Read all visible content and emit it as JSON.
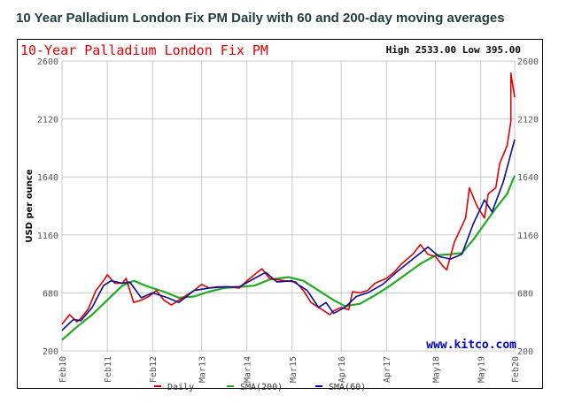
{
  "page_title": "10 Year Palladium London Fix PM Daily with 60 and 200-day moving averages",
  "chart_data": {
    "type": "line",
    "title": "10-Year Palladium London Fix PM",
    "stats": "High 2533.00 Low 395.00",
    "ylabel": "USD per ounce",
    "watermark": "www.kitco.com",
    "ylim": [
      200,
      2600
    ],
    "y_ticks": [
      "200",
      "680",
      "1160",
      "1640",
      "2120",
      "2600"
    ],
    "x_ticks": [
      {
        "label": "Feb10",
        "date": "2010-02"
      },
      {
        "label": "Feb11",
        "date": "2011-02"
      },
      {
        "label": "Feb12",
        "date": "2012-02"
      },
      {
        "label": "Mar13",
        "date": "2013-03"
      },
      {
        "label": "Mar14",
        "date": "2014-03"
      },
      {
        "label": "Mar15",
        "date": "2015-03"
      },
      {
        "label": "Apr16",
        "date": "2016-04"
      },
      {
        "label": "Apr17",
        "date": "2017-04"
      },
      {
        "label": "May18",
        "date": "2018-05"
      },
      {
        "label": "May19",
        "date": "2019-05"
      },
      {
        "label": "Feb20",
        "date": "2020-02"
      }
    ],
    "xlim": [
      "2010-02",
      "2020-02"
    ],
    "grid": true,
    "legend": "bottom",
    "series": [
      {
        "name": "Daily",
        "color": "#e00000",
        "points": [
          [
            "2010-02",
            420
          ],
          [
            "2010-04",
            500
          ],
          [
            "2010-05",
            470
          ],
          [
            "2010-06",
            440
          ],
          [
            "2010-07",
            470
          ],
          [
            "2010-09",
            550
          ],
          [
            "2010-11",
            700
          ],
          [
            "2011-01",
            780
          ],
          [
            "2011-02",
            830
          ],
          [
            "2011-04",
            760
          ],
          [
            "2011-06",
            760
          ],
          [
            "2011-07",
            800
          ],
          [
            "2011-08",
            700
          ],
          [
            "2011-09",
            600
          ],
          [
            "2011-11",
            620
          ],
          [
            "2012-01",
            650
          ],
          [
            "2012-03",
            700
          ],
          [
            "2012-05",
            620
          ],
          [
            "2012-07",
            580
          ],
          [
            "2012-10",
            640
          ],
          [
            "2013-01",
            700
          ],
          [
            "2013-03",
            750
          ],
          [
            "2013-05",
            720
          ],
          [
            "2013-07",
            730
          ],
          [
            "2013-10",
            730
          ],
          [
            "2014-01",
            720
          ],
          [
            "2014-03",
            780
          ],
          [
            "2014-05",
            830
          ],
          [
            "2014-07",
            880
          ],
          [
            "2014-09",
            800
          ],
          [
            "2014-11",
            790
          ],
          [
            "2015-01",
            780
          ],
          [
            "2015-04",
            770
          ],
          [
            "2015-06",
            700
          ],
          [
            "2015-08",
            600
          ],
          [
            "2015-10",
            560
          ],
          [
            "2016-01",
            500
          ],
          [
            "2016-02",
            530
          ],
          [
            "2016-04",
            560
          ],
          [
            "2016-06",
            540
          ],
          [
            "2016-07",
            690
          ],
          [
            "2016-09",
            680
          ],
          [
            "2016-11",
            700
          ],
          [
            "2017-01",
            760
          ],
          [
            "2017-04",
            800
          ],
          [
            "2017-06",
            850
          ],
          [
            "2017-08",
            920
          ],
          [
            "2017-11",
            1000
          ],
          [
            "2018-01",
            1080
          ],
          [
            "2018-03",
            1000
          ],
          [
            "2018-05",
            980
          ],
          [
            "2018-07",
            900
          ],
          [
            "2018-08",
            870
          ],
          [
            "2018-10",
            1100
          ],
          [
            "2019-01",
            1300
          ],
          [
            "2019-02",
            1550
          ],
          [
            "2019-04",
            1400
          ],
          [
            "2019-06",
            1300
          ],
          [
            "2019-07",
            1500
          ],
          [
            "2019-09",
            1550
          ],
          [
            "2019-10",
            1750
          ],
          [
            "2019-12",
            1900
          ],
          [
            "2020-01",
            2100
          ],
          [
            "2020-01",
            2500
          ],
          [
            "2020-02",
            2300
          ]
        ]
      },
      {
        "name": "SMA(200)",
        "color": "#22aa22",
        "points": [
          [
            "2010-02",
            290
          ],
          [
            "2010-06",
            400
          ],
          [
            "2010-10",
            500
          ],
          [
            "2011-02",
            620
          ],
          [
            "2011-06",
            740
          ],
          [
            "2011-09",
            780
          ],
          [
            "2012-01",
            730
          ],
          [
            "2012-05",
            690
          ],
          [
            "2012-09",
            640
          ],
          [
            "2013-01",
            650
          ],
          [
            "2013-05",
            690
          ],
          [
            "2013-09",
            720
          ],
          [
            "2014-01",
            730
          ],
          [
            "2014-05",
            740
          ],
          [
            "2014-09",
            790
          ],
          [
            "2015-02",
            810
          ],
          [
            "2015-06",
            780
          ],
          [
            "2015-10",
            700
          ],
          [
            "2016-02",
            620
          ],
          [
            "2016-05",
            570
          ],
          [
            "2016-09",
            590
          ],
          [
            "2017-01",
            660
          ],
          [
            "2017-05",
            740
          ],
          [
            "2017-09",
            830
          ],
          [
            "2018-01",
            920
          ],
          [
            "2018-05",
            990
          ],
          [
            "2018-09",
            1000
          ],
          [
            "2018-12",
            1010
          ],
          [
            "2019-03",
            1120
          ],
          [
            "2019-06",
            1250
          ],
          [
            "2019-09",
            1380
          ],
          [
            "2019-12",
            1500
          ],
          [
            "2020-02",
            1650
          ]
        ]
      },
      {
        "name": "SMA(60)",
        "color": "#0a0a99",
        "points": [
          [
            "2010-02",
            370
          ],
          [
            "2010-05",
            460
          ],
          [
            "2010-07",
            450
          ],
          [
            "2010-10",
            560
          ],
          [
            "2011-01",
            740
          ],
          [
            "2011-03",
            780
          ],
          [
            "2011-06",
            760
          ],
          [
            "2011-08",
            770
          ],
          [
            "2011-11",
            640
          ],
          [
            "2012-02",
            680
          ],
          [
            "2012-06",
            640
          ],
          [
            "2012-09",
            600
          ],
          [
            "2013-01",
            700
          ],
          [
            "2013-05",
            720
          ],
          [
            "2013-09",
            730
          ],
          [
            "2014-01",
            730
          ],
          [
            "2014-05",
            800
          ],
          [
            "2014-08",
            850
          ],
          [
            "2014-11",
            770
          ],
          [
            "2015-03",
            780
          ],
          [
            "2015-07",
            700
          ],
          [
            "2015-10",
            560
          ],
          [
            "2015-12",
            600
          ],
          [
            "2016-02",
            510
          ],
          [
            "2016-05",
            560
          ],
          [
            "2016-08",
            650
          ],
          [
            "2016-11",
            680
          ],
          [
            "2017-03",
            750
          ],
          [
            "2017-07",
            860
          ],
          [
            "2017-11",
            960
          ],
          [
            "2018-03",
            1060
          ],
          [
            "2018-06",
            980
          ],
          [
            "2018-09",
            960
          ],
          [
            "2018-12",
            1000
          ],
          [
            "2019-03",
            1250
          ],
          [
            "2019-06",
            1450
          ],
          [
            "2019-08",
            1350
          ],
          [
            "2019-11",
            1600
          ],
          [
            "2020-02",
            1950
          ]
        ]
      }
    ]
  }
}
